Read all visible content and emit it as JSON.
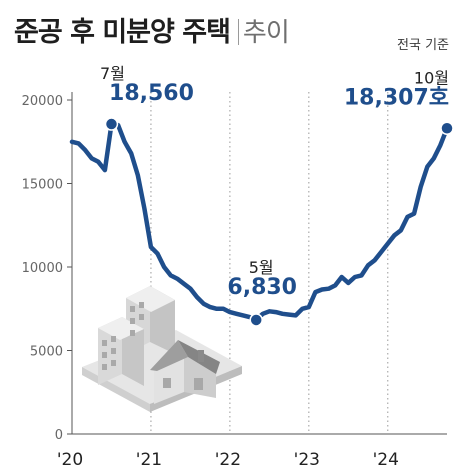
{
  "title": "준공 후 미분양 주택",
  "subtitle": "추이",
  "basis_note": "전국 기준",
  "chart_data": {
    "type": "line",
    "series": [
      {
        "color": "#1f4e8c",
        "points": [
          [
            "2020-01",
            17500
          ],
          [
            "2020-02",
            17400
          ],
          [
            "2020-03",
            17000
          ],
          [
            "2020-04",
            16500
          ],
          [
            "2020-05",
            16300
          ],
          [
            "2020-06",
            15800
          ],
          [
            "2020-07",
            18560
          ],
          [
            "2020-08",
            18500
          ],
          [
            "2020-09",
            17500
          ],
          [
            "2020-10",
            16800
          ],
          [
            "2020-11",
            15500
          ],
          [
            "2020-12",
            13500
          ],
          [
            "2021-01",
            11200
          ],
          [
            "2021-02",
            10800
          ],
          [
            "2021-03",
            10000
          ],
          [
            "2021-04",
            9500
          ],
          [
            "2021-05",
            9300
          ],
          [
            "2021-06",
            9000
          ],
          [
            "2021-07",
            8700
          ],
          [
            "2021-08",
            8200
          ],
          [
            "2021-09",
            7800
          ],
          [
            "2021-10",
            7600
          ],
          [
            "2021-11",
            7500
          ],
          [
            "2021-12",
            7500
          ],
          [
            "2022-01",
            7300
          ],
          [
            "2022-02",
            7200
          ],
          [
            "2022-03",
            7100
          ],
          [
            "2022-04",
            7000
          ],
          [
            "2022-05",
            6830
          ],
          [
            "2022-06",
            7200
          ],
          [
            "2022-07",
            7350
          ],
          [
            "2022-08",
            7300
          ],
          [
            "2022-09",
            7200
          ],
          [
            "2022-10",
            7150
          ],
          [
            "2022-11",
            7100
          ],
          [
            "2022-12",
            7500
          ],
          [
            "2023-01",
            7600
          ],
          [
            "2023-02",
            8500
          ],
          [
            "2023-03",
            8650
          ],
          [
            "2023-04",
            8700
          ],
          [
            "2023-05",
            8900
          ],
          [
            "2023-06",
            9400
          ],
          [
            "2023-07",
            9050
          ],
          [
            "2023-08",
            9400
          ],
          [
            "2023-09",
            9500
          ],
          [
            "2023-10",
            10100
          ],
          [
            "2023-11",
            10400
          ],
          [
            "2023-12",
            10900
          ],
          [
            "2024-01",
            11400
          ],
          [
            "2024-02",
            11900
          ],
          [
            "2024-03",
            12200
          ],
          [
            "2024-04",
            13000
          ],
          [
            "2024-05",
            13200
          ],
          [
            "2024-06",
            14800
          ],
          [
            "2024-07",
            16000
          ],
          [
            "2024-08",
            16500
          ],
          [
            "2024-09",
            17300
          ],
          [
            "2024-10",
            18307
          ]
        ]
      }
    ],
    "y_ticks": [
      0,
      5000,
      10000,
      15000,
      20000
    ],
    "y_tick_labels": [
      "0",
      "5000",
      "10000",
      "15000",
      "20000"
    ],
    "ylim": [
      0,
      20000
    ],
    "x_ticks": [
      "2020-01",
      "2021-01",
      "2022-01",
      "2023-01",
      "2024-01"
    ],
    "x_tick_labels": [
      "'20",
      "'21",
      "'22",
      "'23",
      "'24"
    ],
    "xlim": [
      "2020-01",
      "2024-10"
    ],
    "grid": "vertical dotted",
    "annotations": [
      {
        "x": "2020-07",
        "y": 18560,
        "label": "7월",
        "value": "18,560"
      },
      {
        "x": "2022-05",
        "y": 6830,
        "label": "5월",
        "value": "6,830"
      },
      {
        "x": "2024-10",
        "y": 18307,
        "label": "10월",
        "value": "18,307호"
      }
    ]
  },
  "colors": {
    "line": "#1f4e8c",
    "title": "#1e1e1e",
    "axis": "#555555",
    "grid": "#9a9a9a"
  },
  "illustration": "buildings-and-house"
}
